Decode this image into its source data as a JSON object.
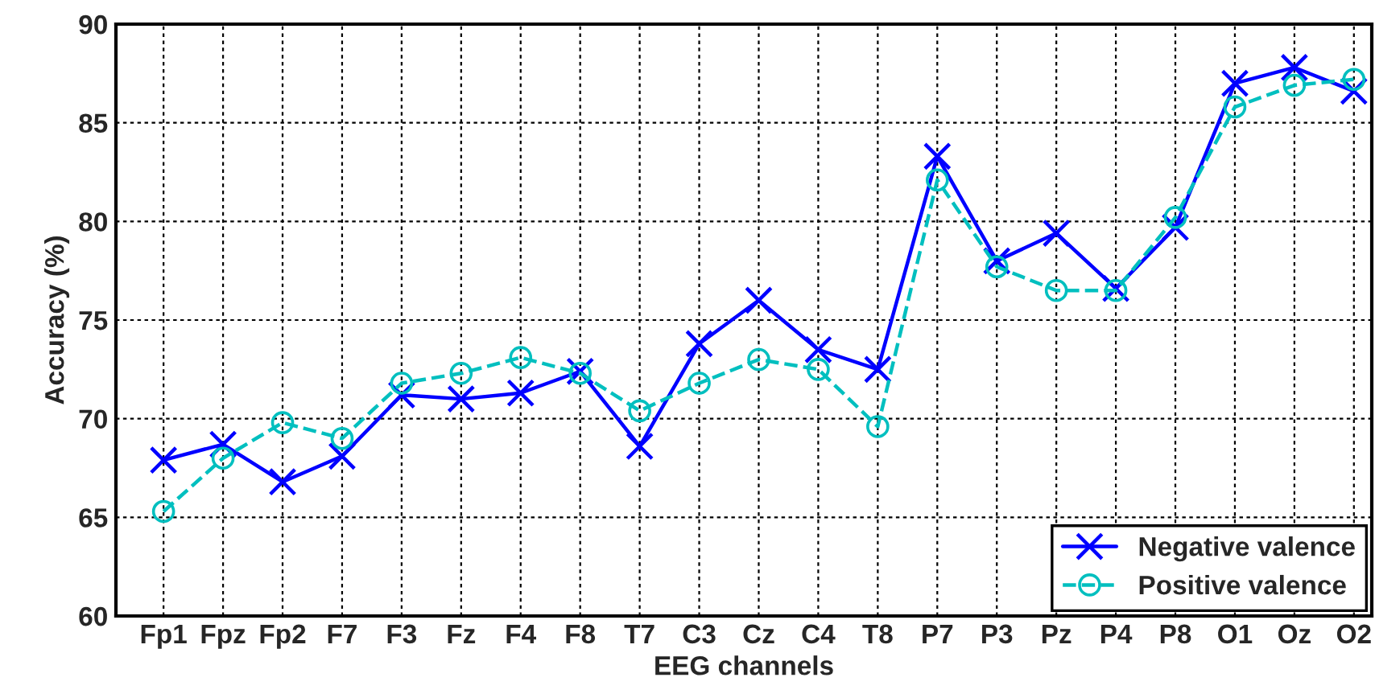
{
  "chart_data": {
    "type": "line",
    "xlabel": "EEG channels",
    "ylabel": "Accuracy (%)",
    "categories": [
      "Fp1",
      "Fpz",
      "Fp2",
      "F7",
      "F3",
      "Fz",
      "F4",
      "F8",
      "T7",
      "C3",
      "Cz",
      "C4",
      "T8",
      "P7",
      "P3",
      "Pz",
      "P4",
      "P8",
      "O1",
      "Oz",
      "O2"
    ],
    "series": [
      {
        "name": "Negative valence",
        "color": "#0000ff",
        "marker": "cross",
        "line_style": "solid",
        "values": [
          67.9,
          68.7,
          66.8,
          68.1,
          71.2,
          71.0,
          71.3,
          72.4,
          68.6,
          73.8,
          76.0,
          73.5,
          72.5,
          83.3,
          78.0,
          79.4,
          76.6,
          79.7,
          87.0,
          87.8,
          86.6
        ]
      },
      {
        "name": "Positive valence",
        "color": "#00bfbf",
        "marker": "circle",
        "line_style": "dashed",
        "values": [
          65.3,
          68.0,
          69.8,
          69.0,
          71.8,
          72.3,
          73.1,
          72.3,
          70.4,
          71.8,
          73.0,
          72.5,
          69.6,
          82.1,
          77.7,
          76.5,
          76.5,
          80.2,
          85.8,
          86.9,
          87.2
        ]
      }
    ],
    "ylim": [
      60,
      90
    ],
    "yticks": [
      60,
      65,
      70,
      75,
      80,
      85,
      90
    ],
    "grid": true,
    "legend": "bottom right"
  }
}
